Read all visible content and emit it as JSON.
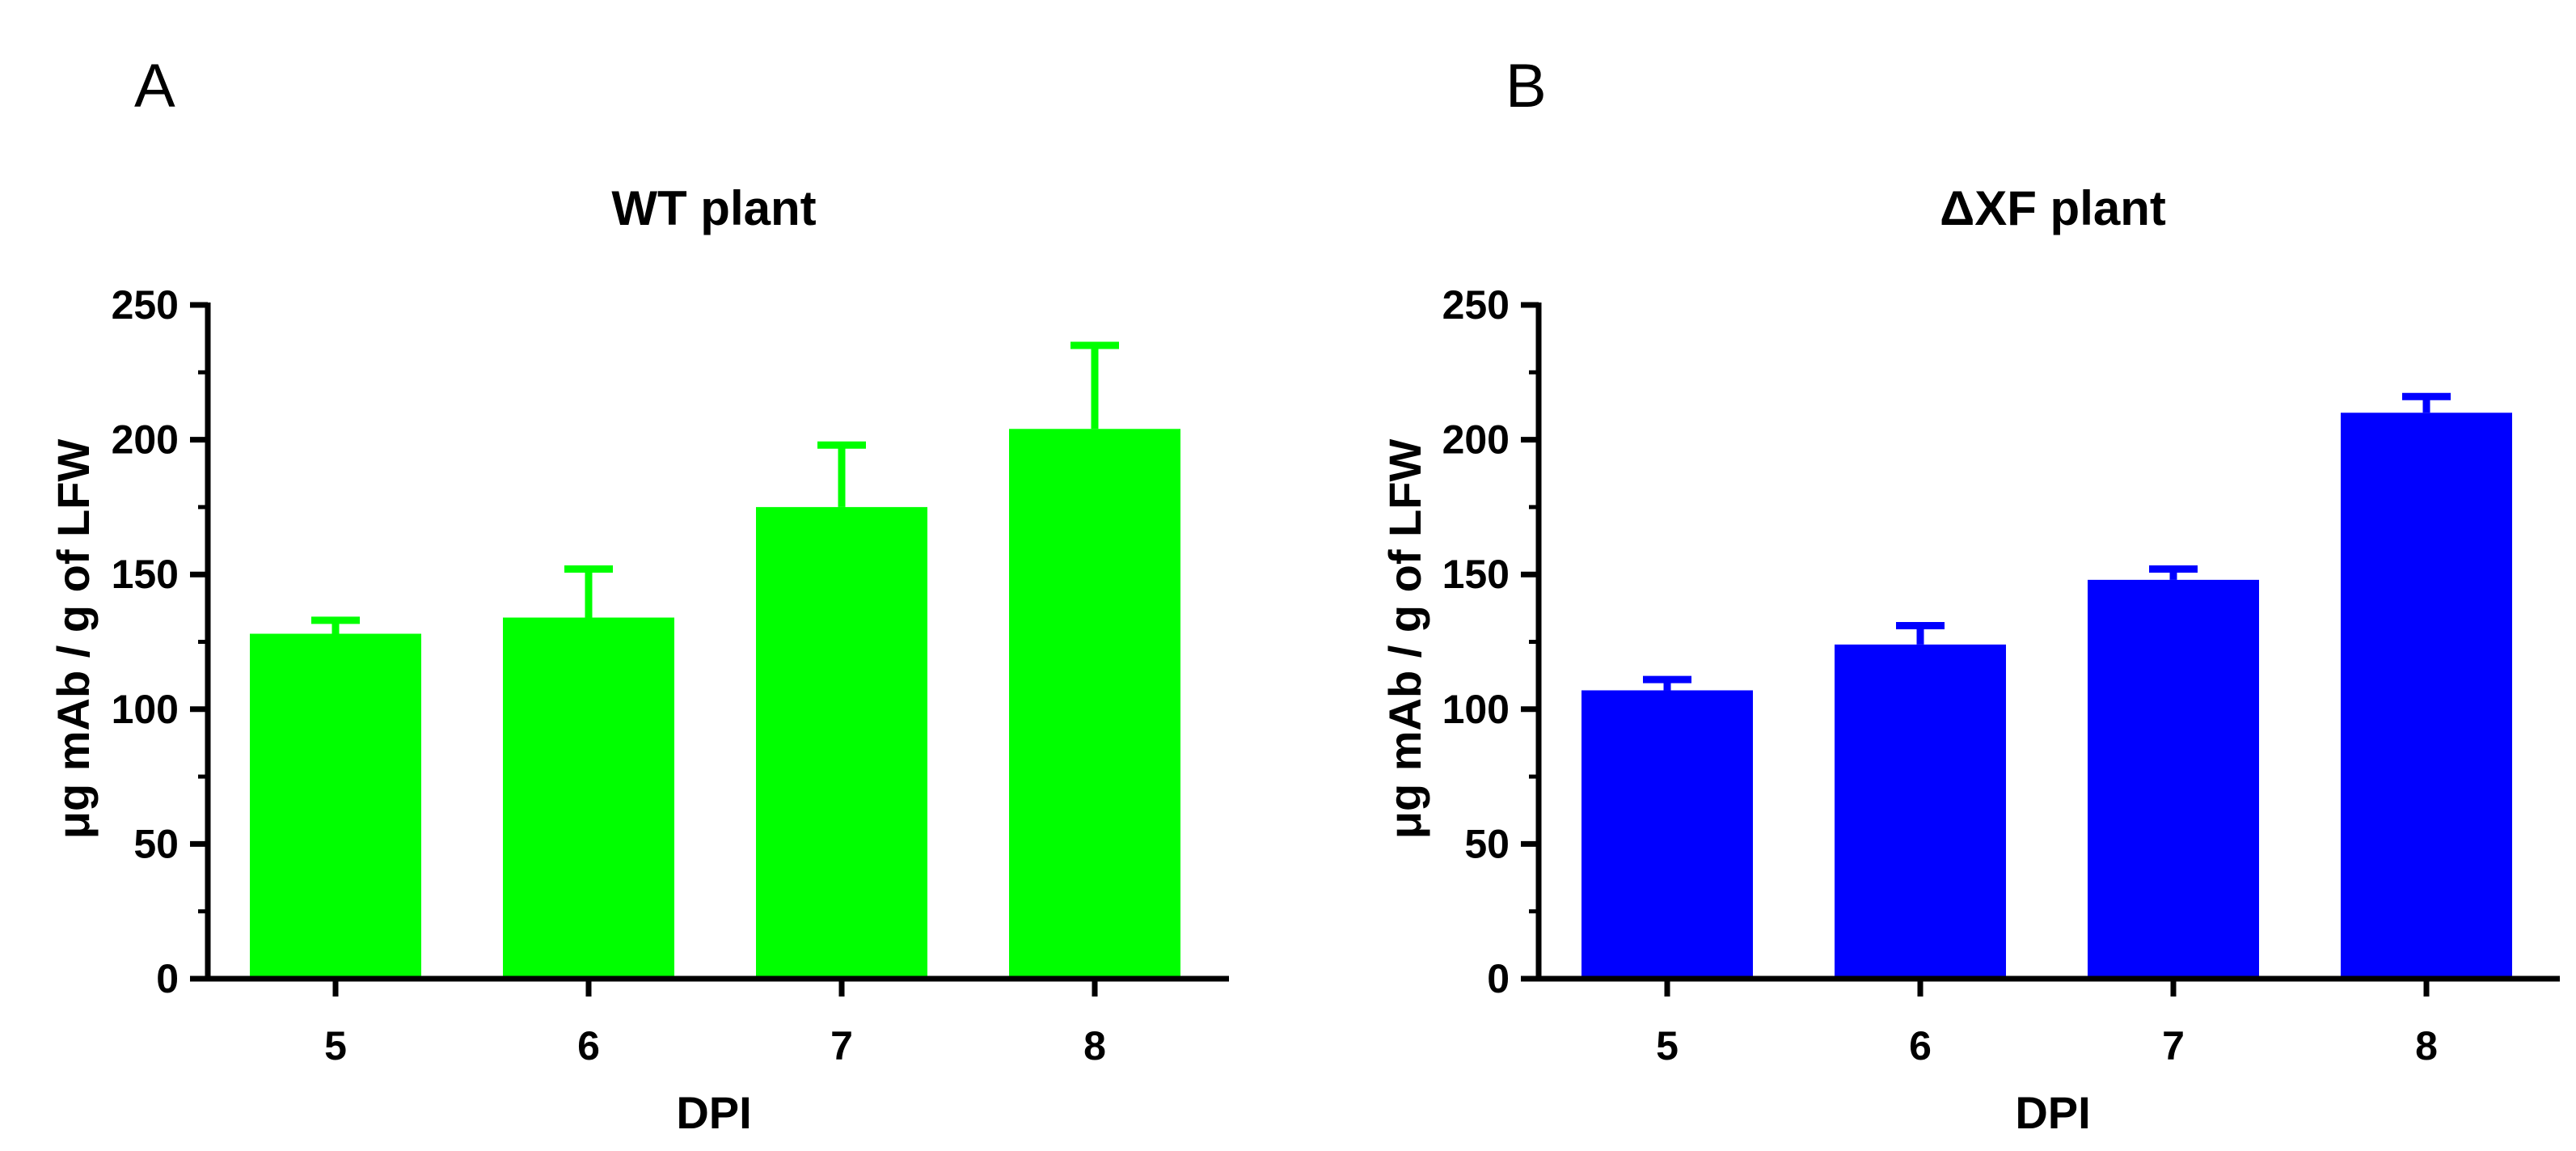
{
  "figure": {
    "panel_letters": [
      "A",
      "B"
    ]
  },
  "chart_data": [
    {
      "type": "bar",
      "title": "WT plant",
      "xlabel": "DPI",
      "ylabel": "μg mAb / g of LFW",
      "categories": [
        "5",
        "6",
        "7",
        "8"
      ],
      "values": [
        128,
        134,
        175,
        204
      ],
      "error_upper": [
        133,
        152,
        198,
        235
      ],
      "ylim": [
        0,
        250
      ],
      "yticks": [
        0,
        50,
        100,
        150,
        200,
        250
      ],
      "color": "#00ff00",
      "legend": "none",
      "grid": false
    },
    {
      "type": "bar",
      "title": "ΔXF plant",
      "xlabel": "DPI",
      "ylabel": "μg mAb / g of LFW",
      "categories": [
        "5",
        "6",
        "7",
        "8"
      ],
      "values": [
        107,
        124,
        148,
        210
      ],
      "error_upper": [
        111,
        131,
        152,
        216
      ],
      "ylim": [
        0,
        250
      ],
      "yticks": [
        0,
        50,
        100,
        150,
        200,
        250
      ],
      "color": "#0000ff",
      "legend": "none",
      "grid": false
    }
  ]
}
